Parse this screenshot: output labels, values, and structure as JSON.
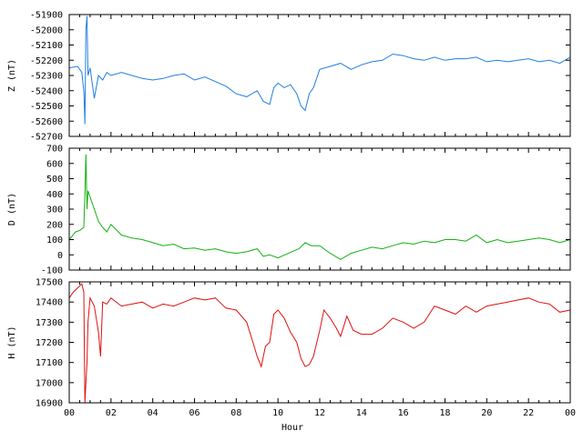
{
  "chart_data": [
    {
      "type": "line",
      "ylabel": "Z (nT)",
      "ylim": [
        -52700,
        -51900
      ],
      "yticks": [
        "-51900",
        "-52000",
        "-52100",
        "-52200",
        "-52300",
        "-52400",
        "-52500",
        "-52600",
        "-52700"
      ],
      "color": "#1f7fe0",
      "series": [
        {
          "x": [
            0,
            0.4,
            0.6,
            0.7,
            0.75,
            0.8,
            0.85,
            0.9,
            1.0,
            1.2,
            1.4,
            1.6,
            1.8,
            2.0,
            2.5,
            3,
            3.5,
            4,
            4.5,
            5,
            5.5,
            6,
            6.5,
            7,
            7.5,
            8,
            8.5,
            9,
            9.3,
            9.6,
            9.8,
            10,
            10.3,
            10.6,
            10.9,
            11.1,
            11.3,
            11.5,
            11.7,
            12,
            12.5,
            13,
            13.5,
            14,
            14.5,
            15,
            15.5,
            16,
            16.5,
            17,
            17.5,
            18,
            18.5,
            19,
            19.5,
            20,
            20.5,
            21,
            21.5,
            22,
            22.5,
            23,
            23.5,
            24
          ],
          "y": [
            -52250,
            -52240,
            -52280,
            -52400,
            -52620,
            -52000,
            -51910,
            -52300,
            -52250,
            -52450,
            -52300,
            -52330,
            -52280,
            -52300,
            -52280,
            -52300,
            -52320,
            -52330,
            -52320,
            -52300,
            -52290,
            -52330,
            -52310,
            -52340,
            -52370,
            -52420,
            -52440,
            -52400,
            -52470,
            -52490,
            -52380,
            -52350,
            -52380,
            -52360,
            -52420,
            -52500,
            -52530,
            -52420,
            -52380,
            -52260,
            -52240,
            -52220,
            -52260,
            -52230,
            -52210,
            -52200,
            -52160,
            -52170,
            -52190,
            -52200,
            -52180,
            -52200,
            -52190,
            -52190,
            -52180,
            -52210,
            -52200,
            -52210,
            -52200,
            -52190,
            -52210,
            -52200,
            -52220,
            -52180
          ]
        }
      ]
    },
    {
      "type": "line",
      "ylabel": "D (nT)",
      "ylim": [
        -100,
        700
      ],
      "yticks": [
        "700",
        "600",
        "500",
        "400",
        "300",
        "200",
        "100",
        "0",
        "-100"
      ],
      "color": "#12b012",
      "series": [
        {
          "x": [
            0,
            0.3,
            0.5,
            0.7,
            0.75,
            0.8,
            0.85,
            0.9,
            1.0,
            1.2,
            1.4,
            1.6,
            1.8,
            2.0,
            2.5,
            3,
            3.5,
            4,
            4.5,
            5,
            5.5,
            6,
            6.5,
            7,
            7.5,
            8,
            8.5,
            9,
            9.3,
            9.6,
            10,
            10.5,
            11,
            11.3,
            11.6,
            12,
            12.5,
            13,
            13.5,
            14,
            14.5,
            15,
            15.5,
            16,
            16.5,
            17,
            17.5,
            18,
            18.5,
            19,
            19.5,
            20,
            20.5,
            21,
            21.5,
            22,
            22.5,
            23,
            23.5,
            24
          ],
          "y": [
            100,
            150,
            160,
            180,
            400,
            660,
            300,
            420,
            380,
            300,
            220,
            180,
            150,
            200,
            130,
            110,
            100,
            80,
            60,
            70,
            40,
            45,
            30,
            40,
            20,
            10,
            20,
            40,
            -10,
            0,
            -20,
            10,
            40,
            80,
            60,
            60,
            10,
            -30,
            10,
            30,
            50,
            40,
            60,
            80,
            70,
            90,
            80,
            100,
            100,
            90,
            130,
            80,
            100,
            80,
            90,
            100,
            110,
            100,
            80,
            100
          ]
        }
      ]
    },
    {
      "type": "line",
      "ylabel": "H (nT)",
      "ylim": [
        16900,
        17500
      ],
      "yticks": [
        "17500",
        "17400",
        "17300",
        "17200",
        "17100",
        "17000",
        "16900"
      ],
      "color": "#e01010",
      "series": [
        {
          "x": [
            0,
            0.2,
            0.4,
            0.6,
            0.7,
            0.75,
            0.8,
            0.85,
            0.9,
            1.0,
            1.2,
            1.4,
            1.5,
            1.6,
            1.8,
            2.0,
            2.5,
            3,
            3.5,
            4,
            4.5,
            5,
            5.5,
            6,
            6.5,
            7,
            7.5,
            8,
            8.5,
            8.8,
            9.0,
            9.2,
            9.4,
            9.6,
            9.8,
            10,
            10.3,
            10.6,
            10.9,
            11.1,
            11.3,
            11.5,
            11.7,
            12,
            12.2,
            12.5,
            12.8,
            13,
            13.3,
            13.6,
            14,
            14.5,
            15,
            15.5,
            16,
            16.5,
            17,
            17.5,
            18,
            18.5,
            19,
            19.5,
            20,
            20.5,
            21,
            21.5,
            22,
            22.5,
            23,
            23.5,
            24
          ],
          "y": [
            17420,
            17450,
            17470,
            17490,
            17450,
            16900,
            17000,
            17100,
            17300,
            17420,
            17380,
            17250,
            17130,
            17400,
            17390,
            17420,
            17380,
            17390,
            17400,
            17370,
            17390,
            17380,
            17400,
            17420,
            17410,
            17420,
            17370,
            17360,
            17300,
            17200,
            17130,
            17080,
            17180,
            17200,
            17340,
            17360,
            17320,
            17250,
            17200,
            17120,
            17080,
            17090,
            17130,
            17260,
            17360,
            17320,
            17270,
            17230,
            17330,
            17260,
            17240,
            17240,
            17270,
            17320,
            17300,
            17270,
            17300,
            17380,
            17360,
            17340,
            17380,
            17350,
            17380,
            17390,
            17400,
            17410,
            17420,
            17400,
            17390,
            17350,
            17360
          ]
        }
      ]
    }
  ],
  "xaxis": {
    "label": "Hour",
    "range": [
      0,
      24
    ],
    "ticks": [
      "00",
      "02",
      "04",
      "06",
      "08",
      "10",
      "12",
      "14",
      "16",
      "18",
      "20",
      "22",
      "00"
    ]
  }
}
